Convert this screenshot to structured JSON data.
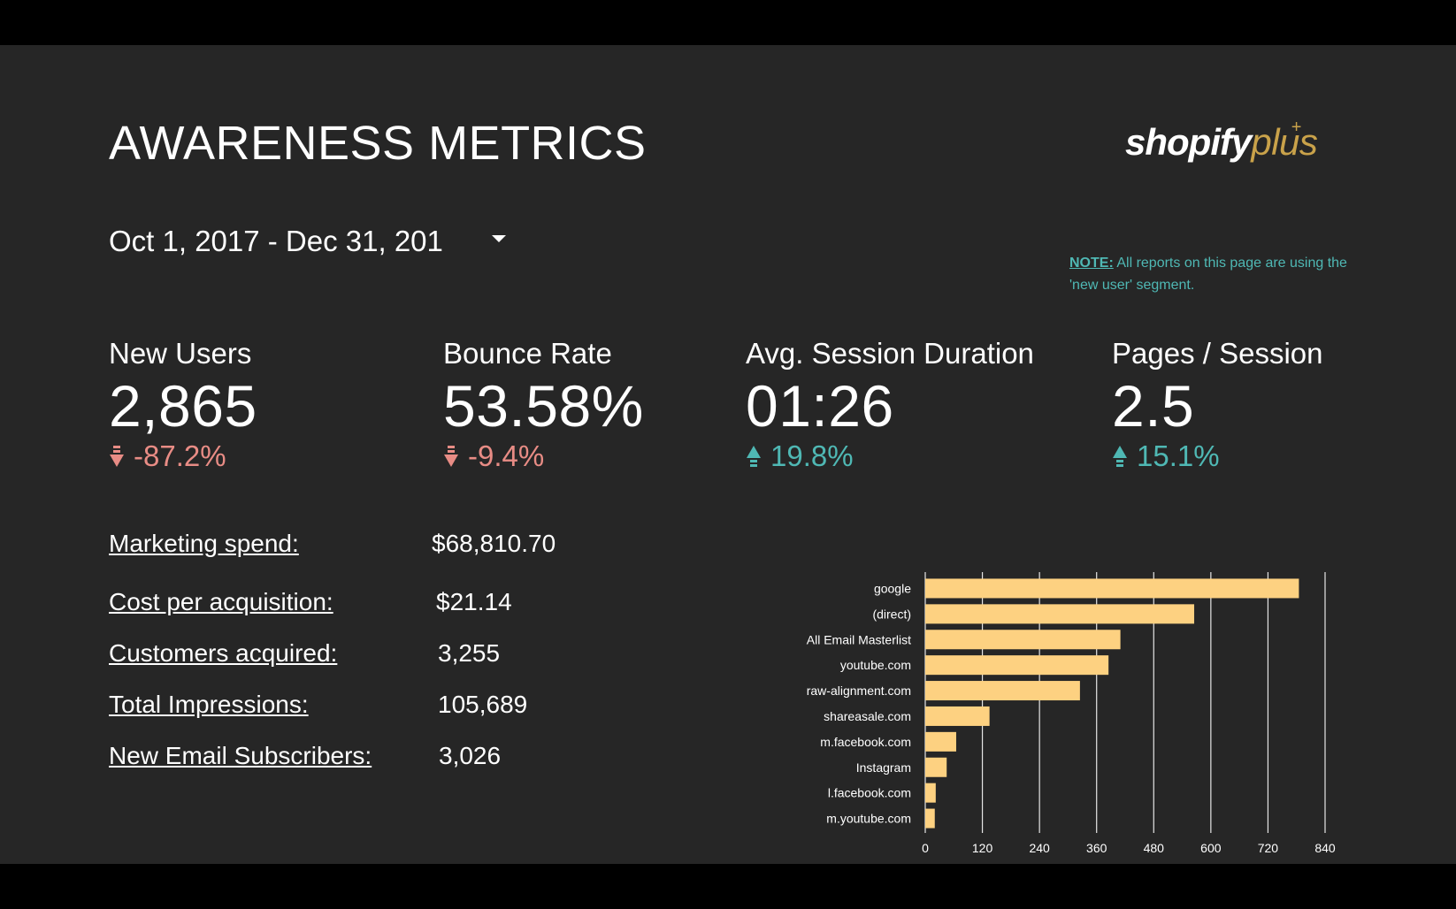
{
  "title": "AWARENESS METRICS",
  "logo": {
    "word1": "shopify",
    "word2": "plus",
    "mark": "+"
  },
  "date_range": {
    "value": "Oct 1, 2017 - Dec 31, 201"
  },
  "note": {
    "label": "NOTE:",
    "text": " All reports on this page are using the 'new user' segment."
  },
  "metrics": [
    {
      "label": "New Users",
      "value": "2,865",
      "change": "-87.2%",
      "direction": "down"
    },
    {
      "label": "Bounce Rate",
      "value": "53.58%",
      "change": "-9.4%",
      "direction": "down"
    },
    {
      "label": "Avg. Session Duration",
      "value": "01:26",
      "change": "19.8%",
      "direction": "up"
    },
    {
      "label": "Pages / Session",
      "value": "2.5",
      "change": "15.1%",
      "direction": "up"
    }
  ],
  "stats": [
    {
      "label": "Marketing spend:",
      "value": "$68,810.70"
    },
    {
      "label": "Cost per acquisition:",
      "value": "$21.14"
    },
    {
      "label": "Customers acquired:",
      "value": "3,255"
    },
    {
      "label": "Total Impressions:",
      "value": "105,689"
    },
    {
      "label": "New Email Subscribers:",
      "value": "3,026"
    }
  ],
  "colors": {
    "background": "#262626",
    "down": "#e88c85",
    "up": "#4fb8b4",
    "bar": "#fdd181",
    "logo_plus": "#c9a24a"
  },
  "chart_data": {
    "type": "bar",
    "orientation": "horizontal",
    "categories": [
      "google",
      "(direct)",
      "All Email Masterlist",
      "youtube.com",
      "raw-alignment.com",
      "shareasale.com",
      "m.facebook.com",
      "Instagram",
      "l.facebook.com",
      "m.youtube.com"
    ],
    "values": [
      785,
      565,
      410,
      385,
      325,
      135,
      65,
      45,
      22,
      20
    ],
    "xlim": [
      0,
      840
    ],
    "xticks": [
      0,
      120,
      240,
      360,
      480,
      600,
      720,
      840
    ],
    "grid": true,
    "title": "",
    "xlabel": "",
    "ylabel": ""
  }
}
